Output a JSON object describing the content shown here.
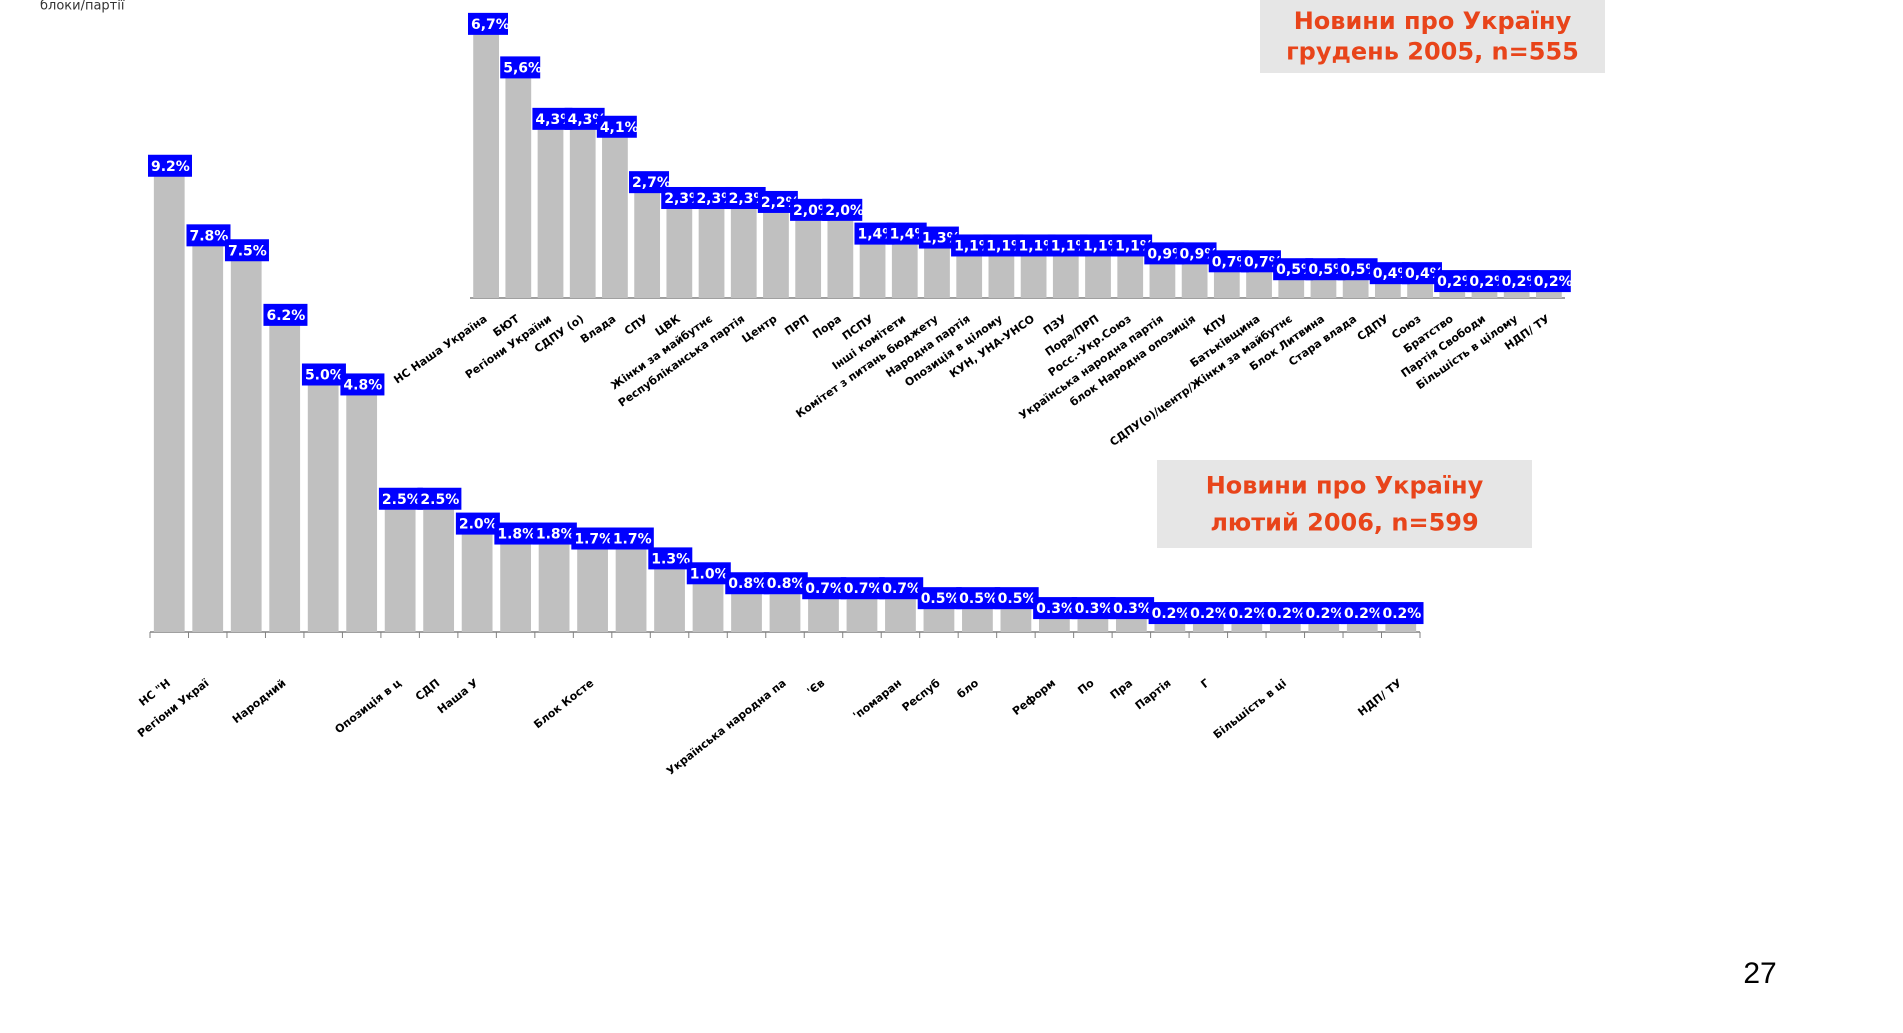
{
  "note": "блоки/партії",
  "page_number": "27",
  "chart_data": [
    {
      "type": "bar",
      "title": "Новини про Україну",
      "subtitle": "грудень 2005, n=555",
      "categories": [
        "НС Наша Україна",
        "БЮТ",
        "Регіони України",
        "СДПУ (о)",
        "Влада",
        "СПУ",
        "ЦВК",
        "Жінки за майбутнє",
        "Республіканська партія",
        "Центр",
        "ПРП",
        "Пора",
        "ПСПУ",
        "Інші комітети",
        "Комітет з питань бюджету",
        "Народна партія",
        "Опозиція в цілому",
        "КУН, УНА-УНСО",
        "ПЗУ",
        "Пора/ПРП",
        "Росс.-Укр.Союз",
        "Українська народна партія",
        "блок Народна опозиція",
        "КПУ",
        "Батьківщина",
        "СДПУ(о)/центр/Жінки за майбутнє",
        "Блок Литвина",
        "Стара влада",
        "СДПУ",
        "Союз",
        "Братство",
        "Партія Свободи",
        "Більшість в цілому",
        "НДП/ ТУ"
      ],
      "values": [
        6.7,
        5.6,
        4.3,
        4.3,
        4.1,
        2.7,
        2.3,
        2.3,
        2.3,
        2.2,
        2.0,
        2.0,
        1.4,
        1.4,
        1.3,
        1.1,
        1.1,
        1.1,
        1.1,
        1.1,
        1.1,
        0.9,
        0.9,
        0.7,
        0.7,
        0.5,
        0.5,
        0.5,
        0.4,
        0.4,
        0.2,
        0.2,
        0.2,
        0.2
      ],
      "value_labels": [
        "6,7%",
        "5,6%",
        "4,3%",
        "4,3%",
        "4,1%",
        "2,7%",
        "2,3%",
        "2,3%",
        "2,3%",
        "2,2%",
        "2,0%",
        "2,0%",
        "1,4%",
        "1,4%",
        "1,3%",
        "1,1%",
        "1,1%",
        "1,1%",
        "1,1%",
        "1,1%",
        "1,1%",
        "0,9%",
        "0,9%",
        "0,7%",
        "0,7%",
        "0,5%",
        "0,5%",
        "0,5%",
        "0,4%",
        "0,4%",
        "0,2%",
        "0,2%",
        "0,2%",
        "0,2%"
      ],
      "color": "#c0c0c0",
      "label_color": "#0000ff",
      "ylim": [
        0,
        7
      ]
    },
    {
      "type": "bar",
      "title": "Новини про Україну",
      "subtitle": "лютий 2006, n=599",
      "categories": [
        "НС \"Н",
        "Регіони Украї",
        null,
        "Народний",
        null,
        null,
        "Опозиція в ц",
        "СДП",
        "Наша У",
        null,
        null,
        "Блок Косте",
        null,
        null,
        null,
        null,
        "Українська народна па",
        "'Єв",
        null,
        "'помаран",
        "Респуб",
        "бло",
        null,
        "Реформ",
        "По",
        "Пра",
        "Партія",
        "Г",
        null,
        "Більшість в ці",
        null,
        null,
        "НДП/ ТУ"
      ],
      "values": [
        9.2,
        7.8,
        7.5,
        6.2,
        5.0,
        4.8,
        2.5,
        2.5,
        2.0,
        1.8,
        1.8,
        1.7,
        1.7,
        1.3,
        1.0,
        0.8,
        0.8,
        0.7,
        0.7,
        0.7,
        0.5,
        0.5,
        0.5,
        0.3,
        0.3,
        0.3,
        0.2,
        0.2,
        0.2,
        0.2,
        0.2,
        0.2,
        0.2
      ],
      "value_labels": [
        "9.2%",
        "7.8%",
        "7.5%",
        "6.2%",
        "5.0%",
        "4.8%",
        "2.5%",
        "2.5%",
        "2.0%",
        "1.8%",
        "1.8%",
        "1.7%",
        "1.7%",
        "1.3%",
        "1.0%",
        "0.8%",
        "0.8%",
        "0.7%",
        "0.7%",
        "0.7%",
        "0.5%",
        "0.5%",
        "0.5%",
        "0.3%",
        "0.3%",
        "0.3%",
        "0.2%",
        "0.2%",
        "0.2%",
        "0.2%",
        "0.2%",
        "0.2%",
        "0.2%"
      ],
      "color": "#c0c0c0",
      "label_color": "#0000ff",
      "ylim": [
        0,
        10
      ]
    }
  ]
}
